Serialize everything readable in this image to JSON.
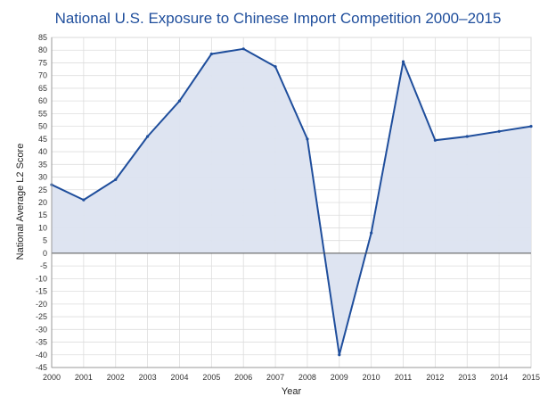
{
  "chart_data": {
    "type": "area",
    "title": "National U.S. Exposure to Chinese Import Competition 2000–2015",
    "xlabel": "Year",
    "ylabel": "National Average L2 Score",
    "x": [
      2000,
      2001,
      2002,
      2003,
      2004,
      2005,
      2006,
      2007,
      2008,
      2009,
      2010,
      2011,
      2012,
      2013,
      2014,
      2015
    ],
    "series": [
      {
        "values": [
          27,
          21,
          29,
          46,
          60,
          78.5,
          80.5,
          73.5,
          45,
          -40,
          8,
          75.5,
          44.5,
          46,
          48,
          50
        ]
      }
    ],
    "ylim": [
      -45,
      85
    ],
    "yticks": [
      85,
      80,
      75,
      70,
      65,
      60,
      55,
      50,
      45,
      40,
      35,
      30,
      25,
      20,
      15,
      10,
      5,
      0,
      -5,
      -10,
      -15,
      -20,
      -25,
      -30,
      -35,
      -40,
      -45
    ],
    "xticks": [
      2000,
      2001,
      2002,
      2003,
      2004,
      2005,
      2006,
      2007,
      2008,
      2009,
      2010,
      2011,
      2012,
      2013,
      2014,
      2015
    ],
    "grid": true,
    "colors": {
      "line": "#1f4e9c",
      "fill": "#dce3f0",
      "grid": "#dddddd",
      "zero_line": "#555555",
      "title": "#1f4e9c"
    }
  }
}
